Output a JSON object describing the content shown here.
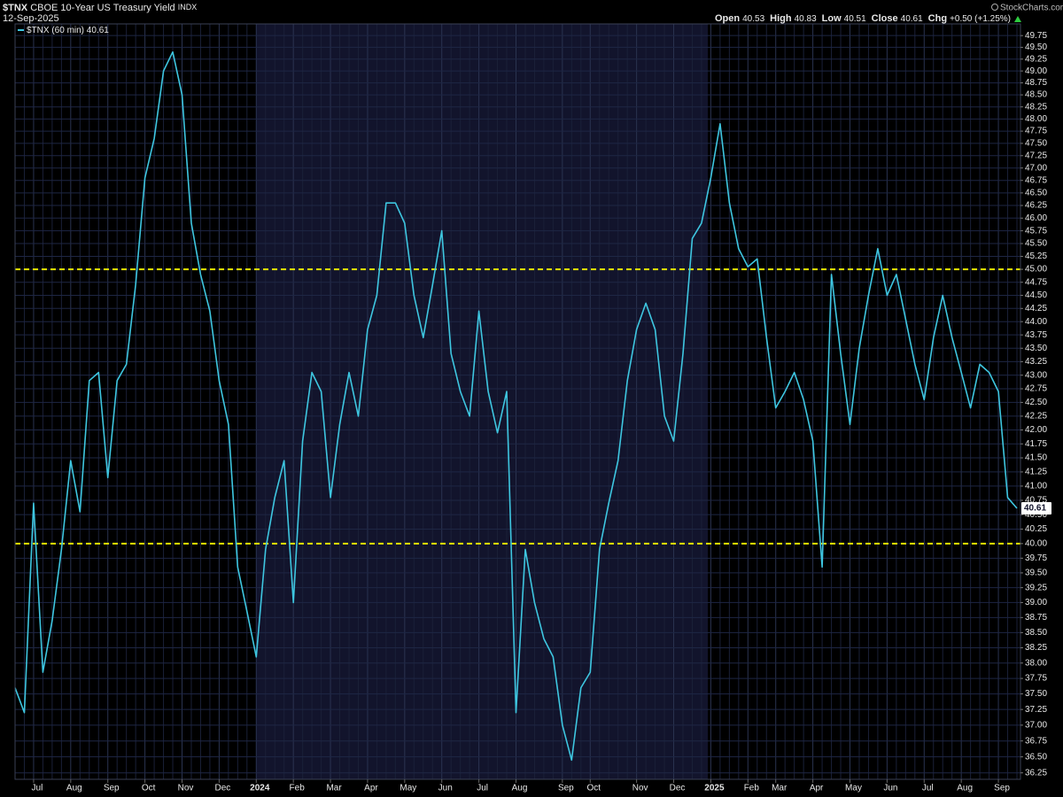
{
  "chart_data": {
    "type": "line",
    "symbol": "$TNX",
    "name": "CBOE 10-Year US Treasury Yield",
    "exchange": "INDX",
    "date": "12-Sep-2025",
    "source": "StockCharts.com",
    "quote": [
      {
        "label": "Open",
        "value": 40.53
      },
      {
        "label": "High",
        "value": 40.83
      },
      {
        "label": "Low",
        "value": 40.51
      },
      {
        "label": "Close",
        "value": 40.61
      },
      {
        "label": "Chg",
        "value": "+0.50 (+1.25%)"
      }
    ],
    "log": true,
    "grid": true,
    "ylim": [
      36.15,
      50.0
    ],
    "yticks": [
      36.25,
      {
        "value": 36.5,
        "label": "36.50"
      },
      36.75,
      {
        "value": 37,
        "label": "37.00"
      },
      37.25,
      {
        "value": 37.5,
        "label": "37.50"
      },
      37.75,
      {
        "value": 38,
        "label": "38.00"
      },
      38.25,
      {
        "value": 38.5,
        "label": "38.50"
      },
      38.75,
      {
        "value": 39,
        "label": "39.00"
      },
      39.25,
      {
        "value": 39.5,
        "label": "39.50"
      },
      39.75,
      {
        "value": 40,
        "label": "40.00"
      },
      40.25,
      {
        "value": 40.5,
        "label": "40.50"
      },
      40.75,
      {
        "value": 41,
        "label": "41.00"
      },
      41.25,
      {
        "value": 41.5,
        "label": "41.50"
      },
      41.75,
      {
        "value": 42,
        "label": "42.00"
      },
      42.25,
      {
        "value": 42.5,
        "label": "42.50"
      },
      42.75,
      {
        "value": 43,
        "label": "43.00"
      },
      43.25,
      {
        "value": 43.5,
        "label": "43.50"
      },
      43.75,
      {
        "value": 44,
        "label": "44.00"
      },
      44.25,
      {
        "value": 44.5,
        "label": "44.50"
      },
      44.75,
      {
        "value": 45,
        "label": "45.00"
      },
      45.25,
      {
        "value": 45.5,
        "label": "45.50"
      },
      45.75,
      {
        "value": 46,
        "label": "46.00"
      },
      46.25,
      {
        "value": 46.5,
        "label": "46.50"
      },
      46.75,
      {
        "value": 47,
        "label": "47.00"
      },
      47.25,
      {
        "value": 47.5,
        "label": "47.50"
      },
      47.75,
      {
        "value": 48,
        "label": "48.00"
      },
      48.25,
      {
        "value": 48.5,
        "label": "48.50"
      },
      48.75,
      {
        "value": 49,
        "label": "49.00"
      },
      49.25,
      {
        "value": 49.5,
        "label": "49.50"
      },
      49.75
    ],
    "categories": [
      null,
      null,
      "Jul",
      null,
      null,
      null,
      "Aug",
      null,
      null,
      null,
      "Sep",
      null,
      null,
      null,
      "Oct",
      null,
      null,
      null,
      "Nov",
      null,
      null,
      null,
      "Dec",
      null,
      null,
      null,
      "2024",
      null,
      null,
      null,
      "Feb",
      null,
      null,
      null,
      "Mar",
      null,
      null,
      null,
      "Apr",
      null,
      null,
      null,
      "May",
      null,
      null,
      null,
      "Jun",
      null,
      null,
      null,
      "Jul",
      null,
      null,
      null,
      "Aug",
      null,
      null,
      null,
      null,
      "Sep",
      null,
      null,
      "Oct",
      null,
      null,
      null,
      null,
      "Nov",
      null,
      null,
      null,
      "Dec",
      null,
      null,
      null,
      "2025",
      null,
      null,
      null,
      "Feb",
      null,
      null,
      "Mar",
      null,
      null,
      null,
      "Apr",
      null,
      null,
      null,
      "May",
      null,
      null,
      null,
      "Jun",
      null,
      null,
      null,
      "Jul",
      null,
      null,
      null,
      "Aug",
      null,
      null,
      null,
      "Sep",
      null,
      null
    ],
    "series": [
      {
        "name": "$TNX (60 min)",
        "color": "#3ec6e0",
        "last_value": 40.61,
        "values": [
          37.6,
          37.2,
          40.7,
          37.85,
          38.7,
          39.9,
          41.45,
          40.55,
          42.9,
          43.05,
          41.15,
          42.9,
          43.2,
          44.7,
          46.8,
          47.6,
          49.0,
          49.4,
          48.5,
          45.9,
          44.9,
          44.2,
          42.9,
          42.1,
          39.6,
          38.85,
          38.1,
          39.9,
          40.8,
          41.45,
          39.0,
          41.8,
          43.05,
          42.7,
          40.8,
          42.1,
          43.05,
          42.25,
          43.85,
          44.5,
          46.3,
          46.3,
          45.9,
          44.5,
          43.7,
          44.7,
          45.75,
          43.4,
          42.7,
          42.25,
          44.2,
          42.7,
          41.95,
          42.7,
          37.2,
          39.9,
          39.0,
          38.4,
          38.1,
          37.0,
          36.45,
          37.6,
          37.85,
          39.9,
          40.7,
          41.45,
          42.9,
          43.85,
          44.35,
          43.85,
          42.25,
          41.8,
          43.4,
          45.6,
          45.9,
          46.8,
          47.9,
          46.3,
          45.4,
          45.05,
          45.2,
          43.7,
          42.4,
          42.7,
          43.05,
          42.55,
          41.8,
          39.6,
          44.9,
          43.4,
          42.1,
          43.5,
          44.5,
          45.4,
          44.5,
          44.9,
          44.05,
          43.2,
          42.55,
          43.7,
          44.5,
          43.7,
          43.05,
          42.4,
          43.2,
          43.05,
          42.7,
          40.8,
          40.61
        ]
      }
    ],
    "hlines": [
      {
        "value": 45,
        "color": "#e6e600"
      },
      {
        "value": 40,
        "color": "#e6e600"
      }
    ]
  }
}
